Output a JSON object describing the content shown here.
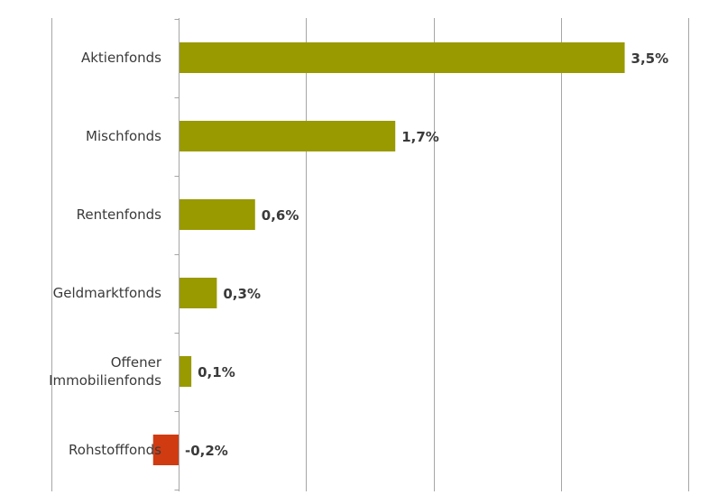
{
  "chart_data": {
    "type": "bar",
    "orientation": "horizontal",
    "categories": [
      "Aktienfonds",
      "Mischfonds",
      "Rentenfonds",
      "Geldmarktfonds",
      "Offener Immobilienfonds",
      "Rohstofffonds"
    ],
    "category_lines": [
      [
        "Aktienfonds"
      ],
      [
        "Mischfonds"
      ],
      [
        "Rentenfonds"
      ],
      [
        "Geldmarktfonds"
      ],
      [
        "Offener",
        "Immobilienfonds"
      ],
      [
        "Rohstofffonds"
      ]
    ],
    "values": [
      3.5,
      1.7,
      0.6,
      0.3,
      0.1,
      -0.2
    ],
    "value_labels": [
      "3,5%",
      "1,7%",
      "0,6%",
      "0,3%",
      "0,1%",
      "-0,2%"
    ],
    "xlim": [
      -1,
      4
    ],
    "grid": true,
    "title": "",
    "xlabel": "",
    "ylabel": "",
    "colors": {
      "positive": "#999900",
      "negative": "#d03b12",
      "grid": "#a6a6a6",
      "text": "#3a3a3a"
    }
  }
}
